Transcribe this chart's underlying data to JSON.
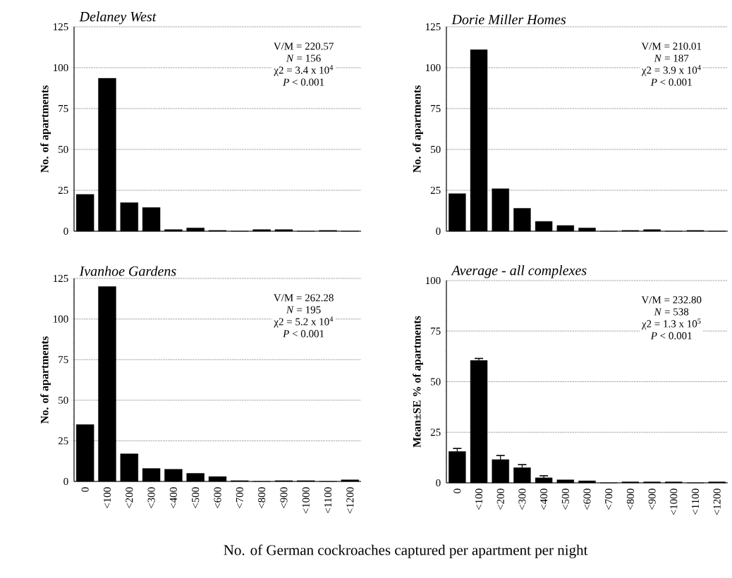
{
  "chart_data": [
    {
      "type": "bar",
      "title": "Delaney West",
      "ylabel": "No. of apartments",
      "categories": [
        null,
        null,
        null,
        null,
        null,
        null,
        null,
        null,
        null,
        null,
        null,
        null,
        null
      ],
      "series": [
        {
          "color": "#000000",
          "values": [
            22.5,
            93.5,
            17.5,
            14.5,
            1,
            2,
            0.5,
            0,
            1,
            1,
            0,
            0.5,
            0
          ]
        }
      ],
      "ylim": [
        0,
        125
      ],
      "yticks": [
        0,
        25,
        50,
        75,
        100,
        125
      ],
      "grid": "y",
      "annotations": [
        "V/M = 220.57",
        "*N* = 156",
        "χ2 = 3.4 x 10$^{4}$",
        "*P* < 0.001"
      ]
    },
    {
      "type": "bar",
      "title": "Dorie Miller Homes",
      "ylabel": "No. of apartments",
      "categories": [
        null,
        null,
        null,
        null,
        null,
        null,
        null,
        null,
        null,
        null,
        null,
        null,
        null
      ],
      "series": [
        {
          "color": "#000000",
          "values": [
            23,
            111,
            26,
            14,
            6,
            3.5,
            2,
            0,
            0.5,
            1,
            0,
            0.5,
            0
          ]
        }
      ],
      "ylim": [
        0,
        125
      ],
      "yticks": [
        0,
        25,
        50,
        75,
        100,
        125
      ],
      "grid": "y",
      "annotations": [
        "V/M = 210.01",
        "*N* = 187",
        "χ2 = 3.9 x 10$^{4}$",
        "*P* < 0.001"
      ]
    },
    {
      "type": "bar",
      "title": "Ivanhoe Gardens",
      "ylabel": "No. of apartments",
      "xlabel": "No. of German cockroaches captured per apartment per night",
      "categories": [
        "0",
        "<100",
        "<200",
        "<300",
        "<400",
        "<500",
        "<600",
        "<700",
        "<800",
        "<900",
        "<1000",
        "<1100",
        "<1200"
      ],
      "series": [
        {
          "color": "#000000",
          "values": [
            35,
            120,
            17,
            8,
            7.5,
            5,
            3,
            0.5,
            0,
            0.5,
            0.5,
            0,
            1
          ]
        }
      ],
      "ylim": [
        0,
        125
      ],
      "yticks": [
        0,
        25,
        50,
        75,
        100,
        125
      ],
      "grid": "y",
      "annotations": [
        "V/M = 262.28",
        "*N* = 195",
        "χ2 = 5.2 x 10$^{4}$",
        "*P* < 0.001"
      ]
    },
    {
      "type": "bar",
      "title": "Average - all complexes",
      "ylabel": "Mean±SE % of apartments",
      "categories": [
        "0",
        "<100",
        "<200",
        "<300",
        "<400",
        "<500",
        "<600",
        "<700",
        "<800",
        "<900",
        "<1000",
        "<1100",
        "<1200"
      ],
      "series": [
        {
          "color": "#000000",
          "values": [
            15.5,
            60.5,
            11.5,
            7.5,
            2.5,
            1.5,
            1,
            0,
            0.5,
            0.5,
            0.5,
            0,
            0.5
          ],
          "errors": [
            1.5,
            1,
            2,
            1.5,
            1,
            null,
            null,
            null,
            null,
            null,
            null,
            null,
            null
          ]
        }
      ],
      "ylim": [
        0,
        100
      ],
      "yticks": [
        0,
        25,
        50,
        75,
        100
      ],
      "grid": "y",
      "annotations": [
        "V/M = 232.80",
        "*N* = 538",
        "χ2 = 1.3 x 10$^{5}$",
        "*P* < 0.001"
      ]
    }
  ]
}
